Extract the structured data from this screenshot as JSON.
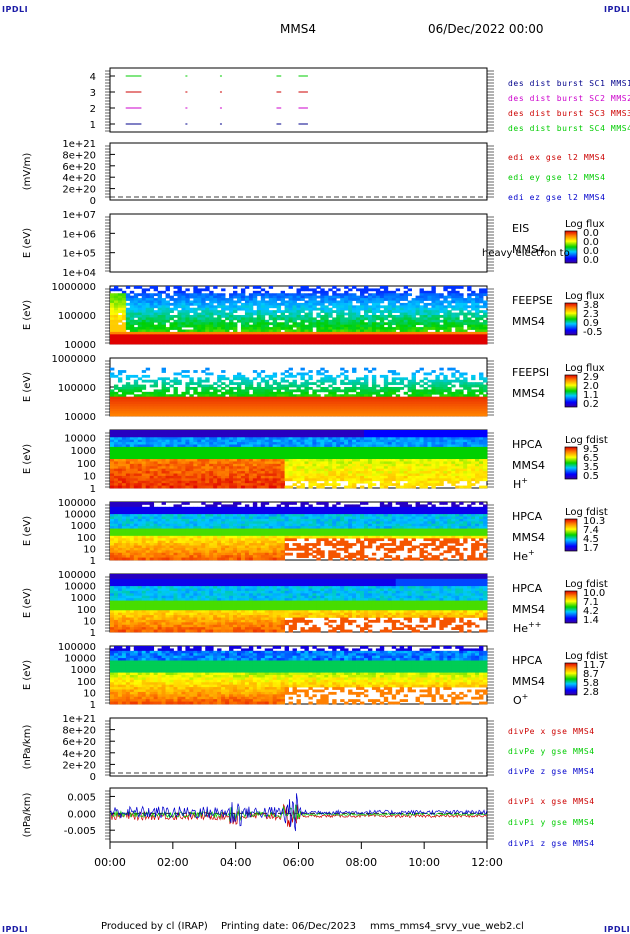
{
  "header": {
    "corner_left": "IPDLI",
    "corner_right": "IPDLI",
    "spacecraft": "MMS4",
    "datetime": "06/Dec/2022 00:00",
    "corner_bottom_left": "IPDLI",
    "corner_bottom_right": "IPDLI"
  },
  "footer": {
    "produced_by": "Produced by cl (IRAP)",
    "printing_date": "Printing date: 06/Dec/2023",
    "script_name": "mms_mms4_srvy_vue_web2.cl"
  },
  "colors": {
    "mms1": "#00008b",
    "mms2": "#cc00cc",
    "mms3": "#cc0000",
    "mms4": "#00cc00",
    "x": "#cc0000",
    "y": "#00cc00",
    "z": "#0000cc"
  },
  "chart_data": [
    {
      "type": "line",
      "title": "",
      "ylabel": "",
      "yticks": [
        "1",
        "2",
        "3",
        "4"
      ],
      "ylim": [
        0.5,
        4.5
      ],
      "x_unit": "hour",
      "legend": [
        "des dist burst SC1 MMS1",
        "des dist burst SC2 MMS2",
        "des dist burst SC3 MMS3",
        "des dist burst SC4 MMS4"
      ],
      "intervals_hours": [
        [
          0.5,
          1.0
        ],
        [
          2.4,
          2.45
        ],
        [
          3.5,
          3.55
        ],
        [
          5.3,
          5.45
        ],
        [
          6.0,
          6.3
        ]
      ]
    },
    {
      "type": "line",
      "ylabel": "(mV/m)",
      "yticks": [
        "0",
        "2e+20",
        "4e+20",
        "6e+20",
        "8e+20",
        "1e+21"
      ],
      "ylim": [
        0,
        1e+21
      ],
      "legend": [
        "edi ex gse l2 MMS4",
        "edi ey gse l2 MMS4",
        "edi ez gse l2 MMS4"
      ],
      "note": "no data"
    },
    {
      "type": "heatmap",
      "ylabel": "E (eV)",
      "yscale": "log",
      "yticks": [
        "1e+04",
        "1e+05",
        "1e+06",
        "1e+07"
      ],
      "ylim": [
        10000.0,
        10000000.0
      ],
      "labels": [
        "EIS",
        "MMS4"
      ],
      "overlay_text": "heavy electron to",
      "colorbar_title": "Log flux",
      "colorbar_ticks": [
        "0.0",
        "0.0",
        "0.0",
        "0.0"
      ]
    },
    {
      "type": "heatmap",
      "ylabel": "E (eV)",
      "yscale": "log",
      "yticks": [
        "10000",
        "100000",
        "1000000"
      ],
      "ylim": [
        10000.0,
        1000000.0
      ],
      "labels": [
        "FEEPSE",
        "MMS4"
      ],
      "colorbar_title": "Log flux",
      "colorbar_ticks": [
        "3.8",
        "2.3",
        "0.9",
        "-0.5"
      ]
    },
    {
      "type": "heatmap",
      "ylabel": "E (eV)",
      "yscale": "log",
      "yticks": [
        "10000",
        "100000",
        "1000000"
      ],
      "ylim": [
        10000.0,
        1000000.0
      ],
      "labels": [
        "FEEPSI",
        "MMS4"
      ],
      "colorbar_title": "Log flux",
      "colorbar_ticks": [
        "2.9",
        "2.0",
        "1.1",
        "0.2"
      ]
    },
    {
      "type": "heatmap",
      "ylabel": "E (eV)",
      "yscale": "log",
      "yticks": [
        "1",
        "10",
        "100",
        "1000",
        "10000"
      ],
      "ylim": [
        1,
        40000
      ],
      "labels": [
        "HPCA",
        "MMS4"
      ],
      "species": "H",
      "species_sup": "+",
      "colorbar_title": "Log fdist",
      "colorbar_ticks": [
        "9.5",
        "6.5",
        "3.5",
        "0.5"
      ]
    },
    {
      "type": "heatmap",
      "ylabel": "E (eV)",
      "yscale": "log",
      "yticks": [
        "1",
        "10",
        "100",
        "1000",
        "10000",
        "100000"
      ],
      "ylim": [
        1,
        100000
      ],
      "labels": [
        "HPCA",
        "MMS4"
      ],
      "species": "He",
      "species_sup": "+",
      "colorbar_title": "Log fdist",
      "colorbar_ticks": [
        "10.3",
        "7.4",
        "4.5",
        "1.7"
      ]
    },
    {
      "type": "heatmap",
      "ylabel": "E (eV)",
      "yscale": "log",
      "yticks": [
        "1",
        "10",
        "100",
        "1000",
        "10000",
        "100000"
      ],
      "ylim": [
        1,
        100000
      ],
      "labels": [
        "HPCA",
        "MMS4"
      ],
      "species": "He",
      "species_sup": "++",
      "colorbar_title": "Log fdist",
      "colorbar_ticks": [
        "10.0",
        "7.1",
        "4.2",
        "1.4"
      ]
    },
    {
      "type": "heatmap",
      "ylabel": "E (eV)",
      "yscale": "log",
      "yticks": [
        "1",
        "10",
        "100",
        "1000",
        "10000",
        "100000"
      ],
      "ylim": [
        1,
        100000
      ],
      "labels": [
        "HPCA",
        "MMS4"
      ],
      "species": "O",
      "species_sup": "+",
      "colorbar_title": "Log fdist",
      "colorbar_ticks": [
        "11.7",
        "8.7",
        "5.8",
        "2.8"
      ]
    },
    {
      "type": "line",
      "ylabel": "(nPa/km)",
      "yticks": [
        "0",
        "2e+20",
        "4e+20",
        "6e+20",
        "8e+20",
        "1e+21"
      ],
      "ylim": [
        0,
        1e+21
      ],
      "legend": [
        "divPe x gse MMS4",
        "divPe y gse MMS4",
        "divPe z gse MMS4"
      ],
      "note": "no data"
    },
    {
      "type": "line",
      "ylabel": "(nPa/km)",
      "yticks": [
        "-0.005",
        "0.000",
        "0.005"
      ],
      "ylim": [
        -0.0085,
        0.0075
      ],
      "legend": [
        "divPi x gse MMS4",
        "divPi y gse MMS4",
        "divPi z gse MMS4"
      ]
    }
  ],
  "xaxis": {
    "xlim_hours": [
      0,
      12
    ],
    "ticks": [
      "00:00",
      "02:00",
      "04:00",
      "06:00",
      "08:00",
      "10:00",
      "12:00"
    ]
  }
}
